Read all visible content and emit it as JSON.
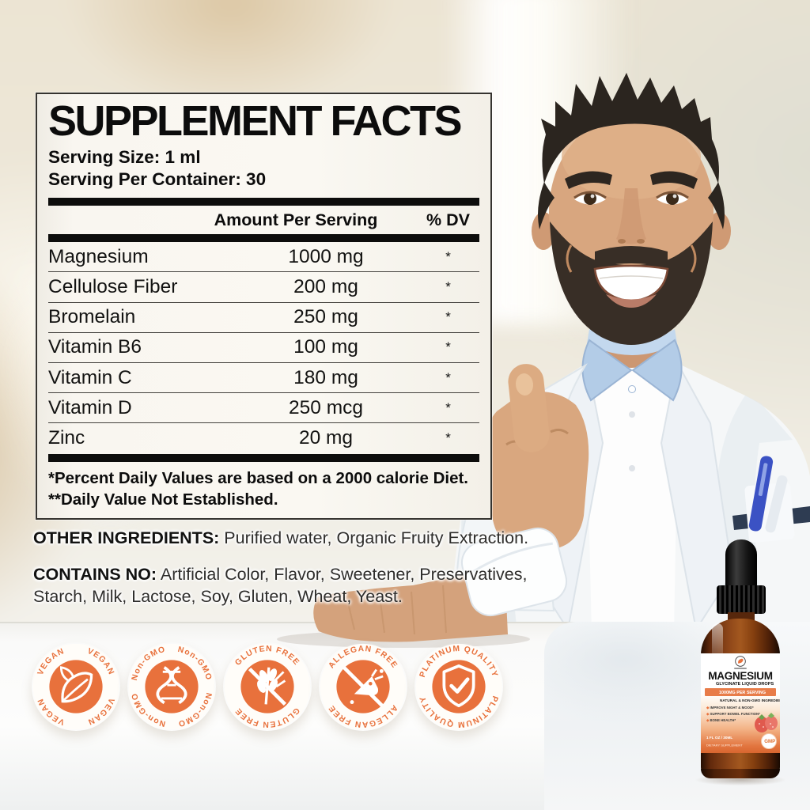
{
  "supplement_facts": {
    "title": "SUPPLEMENT FACTS",
    "serving_size": "Serving Size: 1 ml",
    "servings_per_container": "Serving Per Container: 30",
    "columns": {
      "amount": "Amount Per Serving",
      "dv": "% DV"
    },
    "rows": [
      {
        "name": "Magnesium",
        "amount": "1000 mg",
        "dv": "*"
      },
      {
        "name": "Cellulose Fiber",
        "amount": "200 mg",
        "dv": "*"
      },
      {
        "name": "Bromelain",
        "amount": "250 mg",
        "dv": "*"
      },
      {
        "name": "Vitamin B6",
        "amount": "100 mg",
        "dv": "*"
      },
      {
        "name": "Vitamin C",
        "amount": "180 mg",
        "dv": "*"
      },
      {
        "name": "Vitamin D",
        "amount": "250 mcg",
        "dv": "*"
      },
      {
        "name": "Zinc",
        "amount": "20 mg",
        "dv": "*"
      }
    ],
    "footnote1": "*Percent Daily Values are based on a 2000 calorie Diet.",
    "footnote2": "**Daily Value Not Established."
  },
  "other_ingredients": {
    "label": "OTHER INGREDIENTS:",
    "text": " Purified water, Organic Fruity Extraction."
  },
  "contains_no": {
    "label": "CONTAINS NO:",
    "text": " Artificial Color, Flavor, Sweetener, Preservatives, Starch, Milk, Lactose, Soy, Gluten, Wheat, Yeast."
  },
  "badges": [
    {
      "label": "VEGAN",
      "icon": "leaf-icon",
      "repeat": 4
    },
    {
      "label": "Non-GMO",
      "icon": "dna-icon",
      "repeat": 4
    },
    {
      "label": "GLUTEN FREE",
      "icon": "wheat-slash-icon",
      "repeat": 2
    },
    {
      "label": "ALLEGAN FREE",
      "icon": "allergen-slash-icon",
      "repeat": 2
    },
    {
      "label": "PLATINUM QUALITY",
      "icon": "shield-check-icon",
      "repeat": 2
    }
  ],
  "bottle": {
    "product_name": "MAGNESIUM",
    "subtitle": "GLYCINATE LIQUID DROPS",
    "banner": "1000MG PER SERVING",
    "tagline": "NATURAL & NON-GMO INGREDIENTS",
    "benefits": [
      "IMPROVE NIGHT & MOOD*",
      "SUPPORT BOWEL FUNCTION*",
      "BONE HEALTH*"
    ],
    "volume": "1 FL OZ / 30ML",
    "type": "DIETARY SUPPLEMENT",
    "quality_badge": "GMP"
  },
  "colors": {
    "accent_orange": "#E8713C",
    "panel_bg": "#FAF8F2",
    "text_black": "#0C0C0C"
  }
}
